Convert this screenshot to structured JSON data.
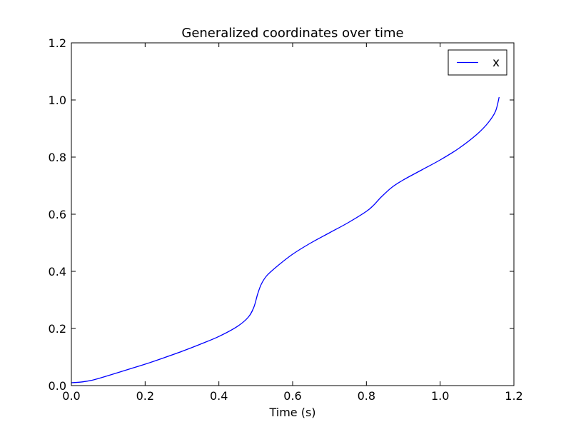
{
  "chart_data": {
    "type": "line",
    "title": "Generalized coordinates over time",
    "xlabel": "Time (s)",
    "ylabel": "",
    "xlim": [
      0.0,
      1.2
    ],
    "ylim": [
      0.0,
      1.2
    ],
    "xticks": [
      "0.0",
      "0.2",
      "0.4",
      "0.6",
      "0.8",
      "1.0",
      "1.2"
    ],
    "yticks": [
      "0.0",
      "0.2",
      "0.4",
      "0.6",
      "0.8",
      "1.0",
      "1.2"
    ],
    "grid": false,
    "legend_position": "top-right",
    "series": [
      {
        "name": "x",
        "color": "#0000ff",
        "x": [
          0.0,
          0.03,
          0.06,
          0.1,
          0.15,
          0.2,
          0.25,
          0.3,
          0.35,
          0.4,
          0.45,
          0.48,
          0.495,
          0.505,
          0.515,
          0.53,
          0.56,
          0.6,
          0.65,
          0.7,
          0.75,
          0.8,
          0.82,
          0.84,
          0.87,
          0.9,
          0.95,
          1.0,
          1.05,
          1.1,
          1.13,
          1.15,
          1.16
        ],
        "y": [
          0.01,
          0.013,
          0.02,
          0.035,
          0.055,
          0.075,
          0.097,
          0.12,
          0.145,
          0.172,
          0.207,
          0.24,
          0.275,
          0.32,
          0.355,
          0.385,
          0.42,
          0.46,
          0.5,
          0.535,
          0.57,
          0.61,
          0.632,
          0.66,
          0.695,
          0.72,
          0.755,
          0.79,
          0.83,
          0.88,
          0.92,
          0.96,
          1.01
        ]
      }
    ]
  }
}
